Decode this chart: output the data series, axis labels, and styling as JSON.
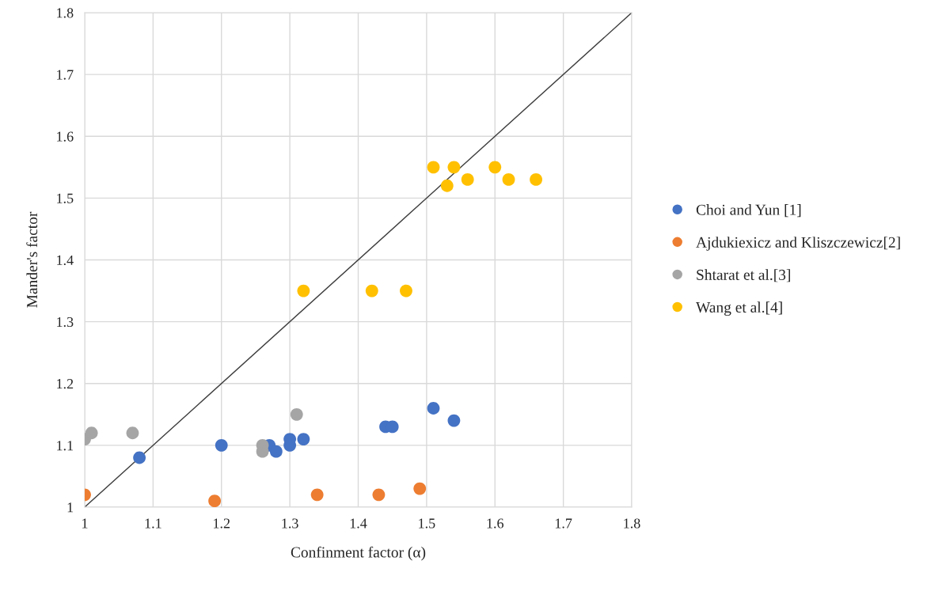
{
  "chart_data": {
    "type": "scatter",
    "xlabel": "Confinment factor (α)",
    "ylabel": "Mander's factor",
    "xlim": [
      1,
      1.8
    ],
    "ylim": [
      1,
      1.8
    ],
    "xticks": [
      {
        "value": 1,
        "label": "1"
      },
      1.1,
      1.2,
      1.3,
      1.4,
      1.5,
      1.6,
      1.7,
      1.8
    ],
    "yticks": [
      {
        "value": 1,
        "label": "1"
      },
      1.1,
      1.2,
      1.3,
      1.4,
      1.5,
      1.6,
      1.7,
      1.8
    ],
    "grid": true,
    "legend": "right",
    "marker": "circle",
    "series": [
      {
        "name": "Choi and Yun [1]",
        "color": "#4472c4",
        "x": [
          1.08,
          1.2,
          1.27,
          1.28,
          1.3,
          1.3,
          1.32,
          1.44,
          1.45,
          1.51,
          1.54
        ],
        "values": [
          1.08,
          1.1,
          1.1,
          1.09,
          1.1,
          1.11,
          1.11,
          1.13,
          1.13,
          1.16,
          1.14
        ]
      },
      {
        "name": "Ajdukiexicz and Kliszczewicz[2]",
        "color": "#ed7d31",
        "x": [
          1.0,
          1.19,
          1.34,
          1.43,
          1.49
        ],
        "values": [
          1.02,
          1.01,
          1.02,
          1.02,
          1.03
        ]
      },
      {
        "name": "Shtarat et al.[3]",
        "color": "#a5a5a5",
        "x": [
          1.0,
          1.01,
          1.07,
          1.26,
          1.26,
          1.31
        ],
        "values": [
          1.11,
          1.12,
          1.12,
          1.1,
          1.09,
          1.15
        ]
      },
      {
        "name": "Wang et al.[4]",
        "color": "#ffc000",
        "x": [
          1.32,
          1.42,
          1.47,
          1.51,
          1.53,
          1.54,
          1.56,
          1.6,
          1.62,
          1.66
        ],
        "values": [
          1.35,
          1.35,
          1.35,
          1.55,
          1.52,
          1.55,
          1.53,
          1.55,
          1.53,
          1.53
        ]
      },
      {
        "type": "line",
        "color": "#404040",
        "x": [
          1.0,
          1.8
        ],
        "values": [
          1.0,
          1.8
        ],
        "marker": "none"
      }
    ]
  }
}
